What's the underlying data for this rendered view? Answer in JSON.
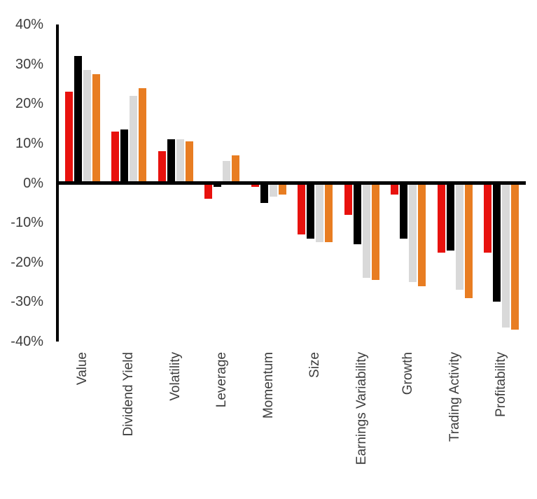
{
  "chart_data": {
    "type": "bar",
    "title": "",
    "categories": [
      "Value",
      "Dividend Yield",
      "Volatility",
      "Leverage",
      "Momentum",
      "Size",
      "Earnings Variability",
      "Growth",
      "Trading Activity",
      "Profitability"
    ],
    "series": [
      {
        "name": "series-red",
        "color": "#e8120e",
        "values": [
          23,
          13,
          8,
          -4,
          -1,
          -13,
          -8,
          -3,
          -17.5,
          -17.5
        ]
      },
      {
        "name": "series-black",
        "color": "#000000",
        "values": [
          32,
          13.5,
          11,
          -1,
          -5,
          -14,
          -15.5,
          -14,
          -17,
          -30
        ]
      },
      {
        "name": "series-gray",
        "color": "#d9d9d9",
        "values": [
          28.5,
          22,
          11,
          5.5,
          -3.5,
          -15,
          -24,
          -25,
          -27,
          -36.5
        ]
      },
      {
        "name": "series-orange",
        "color": "#e87d22",
        "values": [
          27.5,
          24,
          10.5,
          7,
          -3,
          -15,
          -24.5,
          -26,
          -29,
          -37
        ]
      }
    ],
    "xlabel": "",
    "ylabel": "",
    "ylim": [
      -40,
      40
    ],
    "yticks": [
      "40%",
      "30%",
      "20%",
      "10%",
      "0%",
      "-10%",
      "-20%",
      "-30%",
      "-40%"
    ],
    "ytick_values": [
      40,
      30,
      20,
      10,
      0,
      -10,
      -20,
      -30,
      -40
    ],
    "grid": false,
    "legend_visible": false,
    "axis_color": "#000000",
    "tick_label_color": "#3d3d3d",
    "background_color": "#ffffff"
  }
}
